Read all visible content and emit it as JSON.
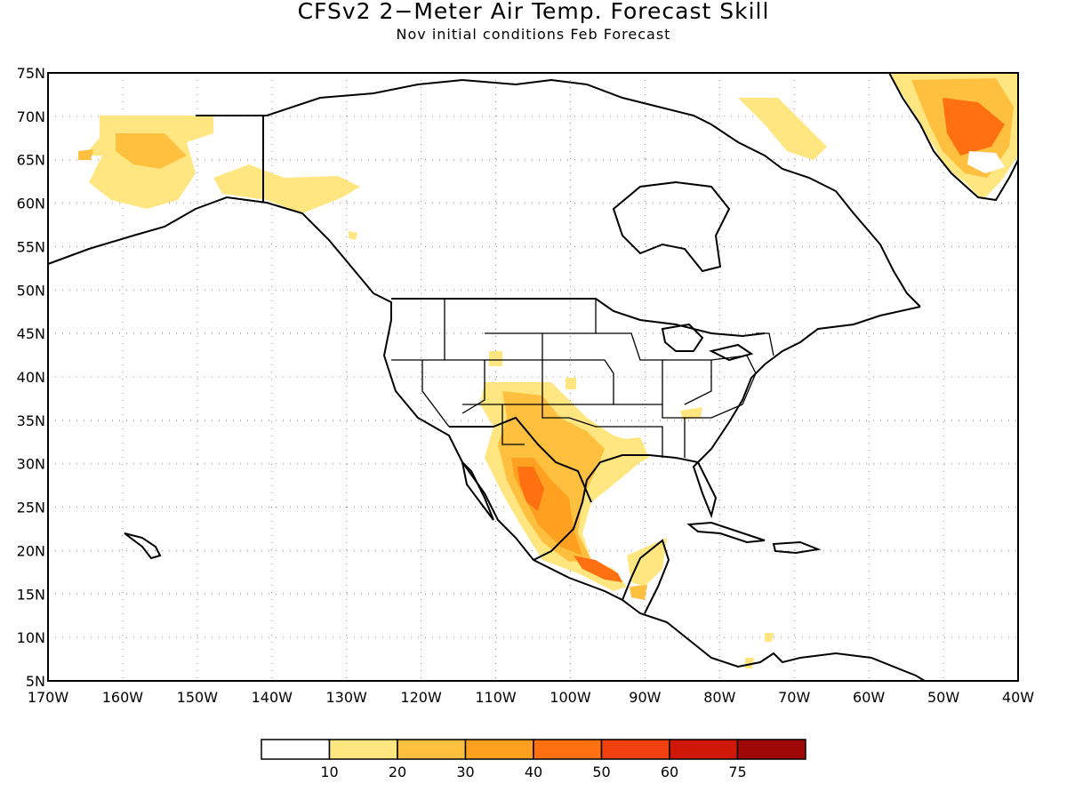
{
  "title": "CFSv2 2−Meter Air Temp. Forecast Skill",
  "subtitle": "Nov initial conditions  Feb Forecast",
  "map": {
    "lat_labels": [
      "75N",
      "70N",
      "65N",
      "60N",
      "55N",
      "50N",
      "45N",
      "40N",
      "35N",
      "30N",
      "25N",
      "20N",
      "15N",
      "10N",
      "5N"
    ],
    "lon_labels": [
      "170W",
      "160W",
      "150W",
      "140W",
      "130W",
      "120W",
      "110W",
      "100W",
      "90W",
      "80W",
      "70W",
      "60W",
      "50W",
      "40W"
    ],
    "lat_range": [
      5,
      75
    ],
    "lon_range": [
      -170,
      -40
    ],
    "grid": "dotted"
  },
  "colorbar": {
    "labels": [
      "10",
      "20",
      "30",
      "40",
      "50",
      "60",
      "75"
    ],
    "colors": [
      "#ffffff",
      "#ffe680",
      "#ffc040",
      "#ffa020",
      "#ff7010",
      "#f04010",
      "#d01808",
      "#a00808"
    ]
  }
}
